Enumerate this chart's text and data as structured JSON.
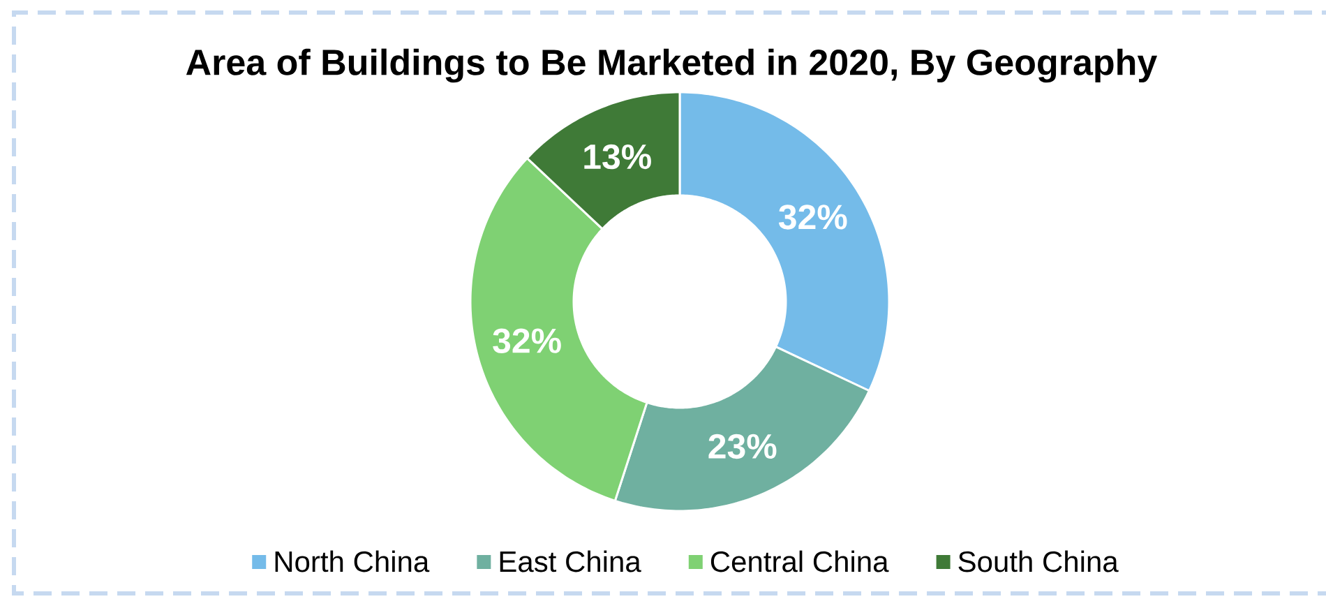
{
  "chart_data": {
    "type": "donut",
    "title": "Area of Buildings to Be Marketed in 2020, By Geography",
    "categories": [
      "North China",
      "East China",
      "Central China",
      "South China"
    ],
    "values": [
      32,
      23,
      32,
      13
    ],
    "colors": [
      "#74bbe9",
      "#6fb0a0",
      "#7fd173",
      "#3f7a37"
    ],
    "value_labels": [
      "32%",
      "23%",
      "32%",
      "13%"
    ],
    "legend": "bottom"
  }
}
